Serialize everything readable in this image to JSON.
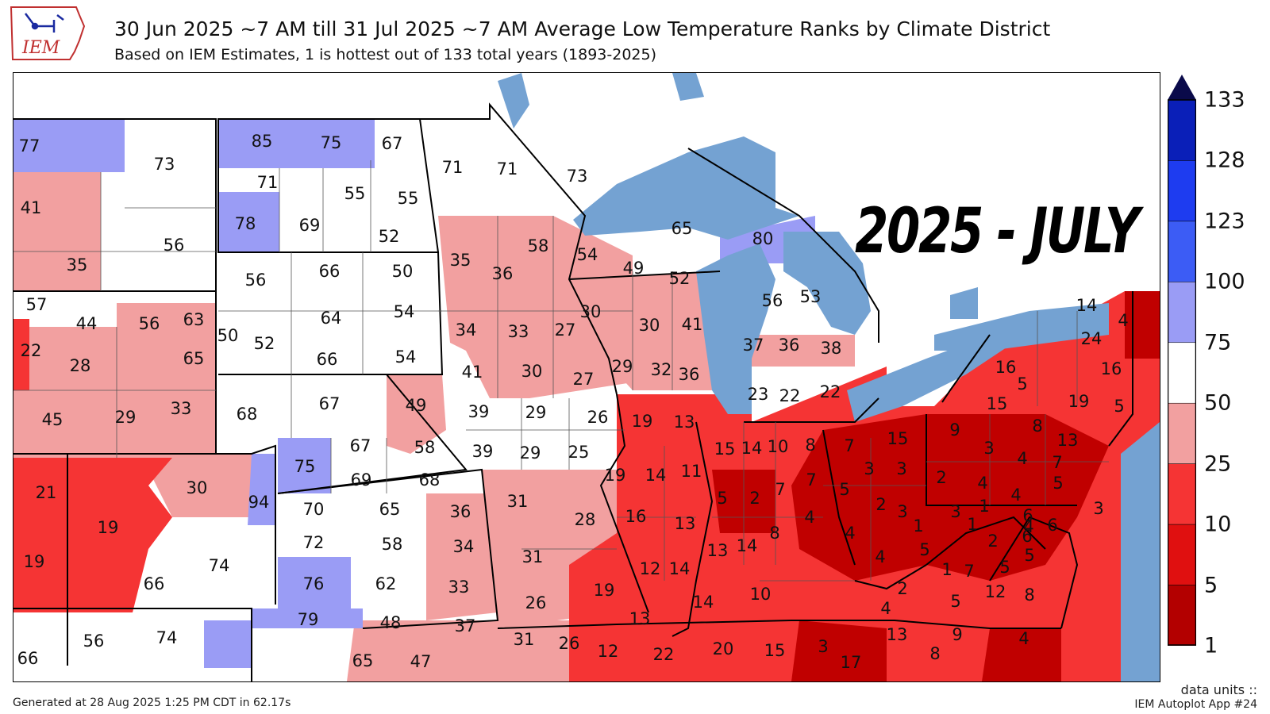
{
  "header": {
    "title": "30 Jun 2025 ~7 AM till 31 Jul 2025 ~7 AM Average Low Temperature Ranks by Climate District",
    "subtitle": "Based on IEM Estimates, 1 is hottest out of 133 total years (1893-2025)",
    "logo_text": "IEM"
  },
  "banner": "2025 - JULY",
  "legend": {
    "ticks": [
      "133",
      "128",
      "123",
      "100",
      "75",
      "50",
      "25",
      "10",
      "5",
      "1"
    ],
    "colors": [
      "#0a0a6e",
      "#0a1fb8",
      "#1e3cf0",
      "#3c5cf5",
      "#9a9cf5",
      "#ffffff",
      "#f2a0a0",
      "#f53434",
      "#e01010",
      "#b30000"
    ],
    "extend_arrow_color": "#0a0a4a"
  },
  "colors": {
    "lake": "#74a2d2",
    "white": "#ffffff",
    "light_red": "#f2a0a0",
    "red": "#f53434",
    "dark_red": "#c00000",
    "blue": "#9a9cf5"
  },
  "ranks": [
    "77",
    "73",
    "41",
    "56",
    "35",
    "85",
    "75",
    "67",
    "71",
    "55",
    "55",
    "78",
    "69",
    "52",
    "71",
    "71",
    "73",
    "57",
    "44",
    "56",
    "63",
    "22",
    "28",
    "65",
    "45",
    "29",
    "33",
    "50",
    "56",
    "66",
    "50",
    "52",
    "64",
    "54",
    "66",
    "54",
    "68",
    "67",
    "49",
    "75",
    "67",
    "58",
    "69",
    "68",
    "21",
    "30",
    "94",
    "19",
    "19",
    "74",
    "66",
    "70",
    "65",
    "72",
    "58",
    "76",
    "62",
    "66",
    "56",
    "74",
    "79",
    "48",
    "37",
    "65",
    "47",
    "35",
    "36",
    "58",
    "54",
    "49",
    "65",
    "52",
    "34",
    "33",
    "27",
    "30",
    "30",
    "41",
    "80",
    "56",
    "53",
    "41",
    "30",
    "27",
    "39",
    "29",
    "26",
    "39",
    "29",
    "25",
    "29",
    "32",
    "36",
    "37",
    "36",
    "38",
    "19",
    "13",
    "19",
    "14",
    "11",
    "16",
    "13",
    "12",
    "14",
    "15",
    "14",
    "10",
    "5",
    "2",
    "7",
    "13",
    "14",
    "8",
    "23",
    "22",
    "22",
    "8",
    "7",
    "15",
    "7",
    "5",
    "3",
    "3",
    "2",
    "4",
    "3",
    "1",
    "4",
    "4",
    "5",
    "7",
    "5",
    "19",
    "13",
    "14",
    "10",
    "31",
    "28",
    "31",
    "26",
    "36",
    "34",
    "33",
    "31",
    "26",
    "12",
    "22",
    "20",
    "15",
    "3",
    "17",
    "13",
    "9",
    "8",
    "4",
    "14",
    "4",
    "24",
    "16",
    "16",
    "5",
    "15",
    "19",
    "5",
    "9",
    "8",
    "13",
    "3",
    "4",
    "7",
    "5",
    "2",
    "4",
    "4",
    "1",
    "6",
    "6",
    "3",
    "3",
    "1",
    "2",
    "6",
    "5",
    "4",
    "12",
    "8",
    "5",
    "2",
    "1",
    "4"
  ],
  "footer": {
    "generated": "Generated at 28 Aug 2025 1:25 PM CDT in 62.17s",
    "units": "data units ::",
    "app": "IEM Autoplot App #24"
  }
}
